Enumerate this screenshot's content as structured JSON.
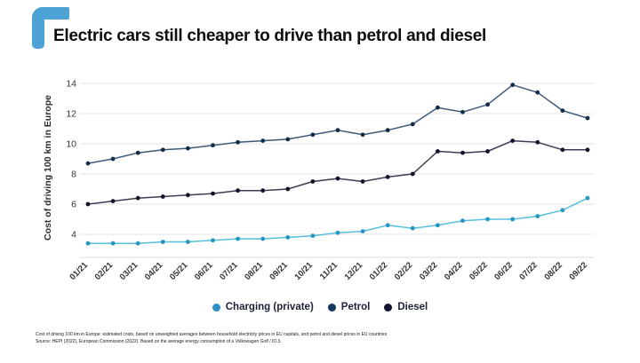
{
  "page": {
    "title": "Electric cars still cheaper to drive than petrol and diesel"
  },
  "logo": {
    "color": "#4da3d6"
  },
  "chart_data": {
    "type": "line",
    "title": "Electric cars still cheaper to drive than petrol and diesel",
    "xlabel": "",
    "ylabel": "Cost of driving 100 km in Europe",
    "ylim": [
      2.5,
      14.4
    ],
    "yticks": [
      4,
      6,
      8,
      10,
      12,
      14
    ],
    "grid": true,
    "legend_position": "bottom",
    "categories": [
      "01/21",
      "02/21",
      "03/21",
      "04/21",
      "05/21",
      "06/21",
      "07/21",
      "08/21",
      "09/21",
      "10/21",
      "11/21",
      "12/21",
      "01/22",
      "02/22",
      "03/22",
      "04/22",
      "05/22",
      "06/22",
      "07/22",
      "08/22",
      "09/22"
    ],
    "series": [
      {
        "name": "Charging (private)",
        "line_color": "#56bfdd",
        "marker_color": "#2496c0",
        "legend_color": "#2e8fc7",
        "values": [
          3.4,
          3.4,
          3.4,
          3.5,
          3.5,
          3.6,
          3.7,
          3.7,
          3.8,
          3.9,
          4.1,
          4.2,
          4.6,
          4.4,
          4.6,
          4.9,
          5.0,
          5.0,
          5.2,
          5.6,
          6.4
        ]
      },
      {
        "name": "Petrol",
        "line_color": "#3d5a7a",
        "marker_color": "#142c47",
        "legend_color": "#16365f",
        "values": [
          8.7,
          9.0,
          9.4,
          9.6,
          9.7,
          9.9,
          10.1,
          10.2,
          10.3,
          10.6,
          10.9,
          10.6,
          10.9,
          11.3,
          12.4,
          12.1,
          12.6,
          13.9,
          13.4,
          12.2,
          11.7
        ]
      },
      {
        "name": "Diesel",
        "line_color": "#3c3c52",
        "marker_color": "#12122b",
        "legend_color": "#15152f",
        "values": [
          6.0,
          6.2,
          6.4,
          6.5,
          6.6,
          6.7,
          6.9,
          6.9,
          7.0,
          7.5,
          7.7,
          7.5,
          7.8,
          8.0,
          9.5,
          9.4,
          9.5,
          10.2,
          10.1,
          9.6,
          9.6
        ]
      }
    ]
  },
  "footnotes": {
    "line1": "Cost of driving 100 km in Europe: estimated costs, based on unweighted averages between household electricity prices in EU capitals, and petrol and diesel prices in EU countries",
    "line2": "Source: HEPI (2022), European Commission (2022). Based on the average energy consumption of a Volkswagen Golf / ID.3."
  }
}
